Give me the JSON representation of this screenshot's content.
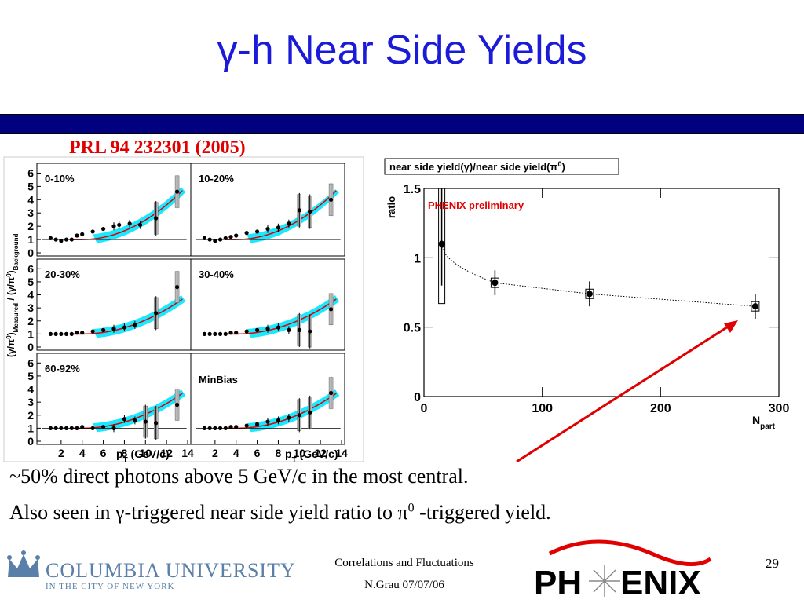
{
  "title": {
    "pre": "γ",
    "text": "-h Near Side Yields"
  },
  "reference": "PRL 94 232301 (2005)",
  "left_figure": {
    "ylabel_parts": [
      "(γ/π",
      "0",
      ")",
      "Measured",
      " / (γ/π",
      "0",
      ")",
      "Background"
    ],
    "xlabel": "p",
    "xlabel_sub": "T",
    "xlabel_unit": " (GeV/c)",
    "panels": [
      {
        "label": "0-10%"
      },
      {
        "label": "10-20%"
      },
      {
        "label": "20-30%"
      },
      {
        "label": "30-40%"
      },
      {
        "label": "60-92%"
      },
      {
        "label": "MinBias"
      }
    ],
    "yticks": [
      "0",
      "1",
      "2",
      "3",
      "4",
      "5",
      "6"
    ],
    "xticks": [
      "2",
      "4",
      "6",
      "8",
      "10",
      "12",
      "14"
    ]
  },
  "right_figure": {
    "header": "near side yield(γ)/near side yield(π",
    "header_sup": "0",
    "header_end": ")",
    "ylabel": "ratio",
    "annotation": "PHENIX preliminary",
    "xlabel": "N",
    "xlabel_sub": "part"
  },
  "chart_data": {
    "type": "scatter",
    "x": [
      15,
      60,
      140,
      280
    ],
    "values": [
      1.1,
      0.82,
      0.74,
      0.65
    ],
    "xlim": [
      0,
      300
    ],
    "ylim": [
      0,
      1.5
    ],
    "xticks": [
      "0",
      "100",
      "200",
      "300"
    ],
    "yticks": [
      "0",
      "0.5",
      "1",
      "1.5"
    ],
    "grid": false
  },
  "text_lines": {
    "line1": "~50% direct photons above 5 GeV/c in the most central.",
    "line2a": "Also seen in ",
    "line2b": "γ",
    "line2c": "-triggered near side yield ratio to ",
    "line2d": "π",
    "line2e": "0",
    "line2f": " -triggered yield."
  },
  "footer": {
    "line1": "Correlations and Fluctuations",
    "line2": "N.Grau 07/07/06"
  },
  "page_number": "29",
  "logos": {
    "university": "COLUMBIA UNIVERSITY",
    "university_sub": "IN THE CITY OF NEW YORK",
    "experiment_left": "PH",
    "experiment_right": "ENIX"
  },
  "colors": {
    "title": "#1a1ad8",
    "bar": "#000080",
    "reference": "#e00000",
    "band": "#00e5ff",
    "fit": "#e00000",
    "arrow": "#e00000"
  }
}
